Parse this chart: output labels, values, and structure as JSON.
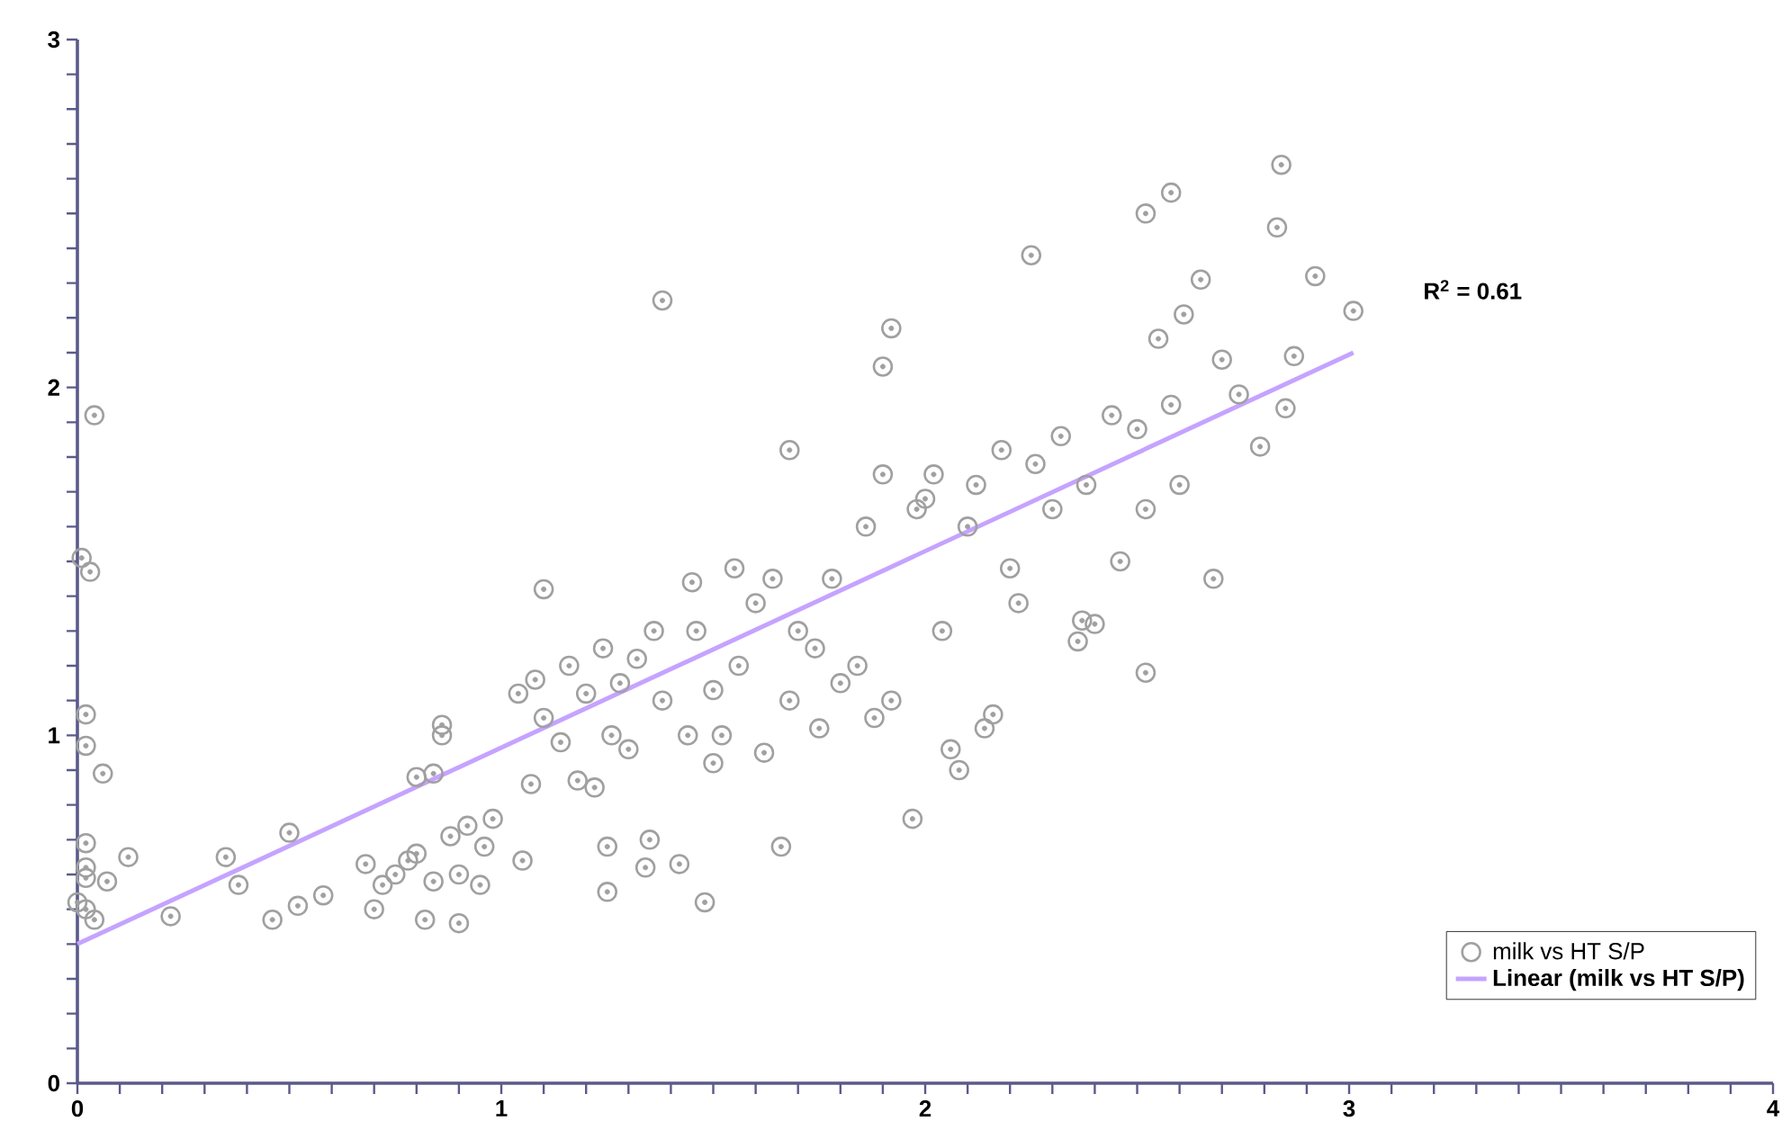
{
  "chart_data": {
    "type": "scatter",
    "xlim": [
      0,
      4
    ],
    "ylim": [
      0,
      3
    ],
    "xticks": [
      0,
      1,
      2,
      3,
      4
    ],
    "yticks": [
      0,
      1,
      2,
      3
    ],
    "grid": false,
    "legend": "bottom right",
    "annotations": [
      "R$^{2}$ = 0.61"
    ],
    "series": [
      {
        "name": "milk vs HT S/P",
        "marker": "circle",
        "color": "#a0a0a0",
        "x": [
          0.04,
          0.01,
          0.03,
          0.02,
          0.02,
          0.06,
          0.02,
          0.02,
          0.02,
          0.0,
          0.02,
          0.04,
          0.07,
          0.12,
          0.22,
          0.35,
          0.38,
          0.46,
          0.5,
          0.52,
          0.58,
          0.68,
          0.7,
          0.72,
          0.75,
          0.78,
          0.8,
          0.82,
          0.84,
          0.8,
          0.84,
          0.86,
          0.86,
          0.88,
          0.9,
          0.9,
          0.92,
          0.95,
          0.96,
          0.98,
          1.04,
          1.05,
          1.07,
          1.08,
          1.1,
          1.1,
          1.14,
          1.16,
          1.18,
          1.2,
          1.22,
          1.24,
          1.25,
          1.25,
          1.26,
          1.28,
          1.3,
          1.32,
          1.34,
          1.35,
          1.36,
          1.38,
          1.38,
          1.42,
          1.44,
          1.45,
          1.46,
          1.48,
          1.5,
          1.5,
          1.52,
          1.55,
          1.56,
          1.6,
          1.62,
          1.64,
          1.66,
          1.68,
          1.68,
          1.7,
          1.74,
          1.75,
          1.78,
          1.8,
          1.84,
          1.86,
          1.88,
          1.9,
          1.9,
          1.92,
          1.92,
          1.97,
          1.98,
          2.0,
          2.02,
          2.04,
          2.06,
          2.08,
          2.1,
          2.12,
          2.14,
          2.16,
          2.18,
          2.2,
          2.22,
          2.25,
          2.26,
          2.3,
          2.32,
          2.36,
          2.37,
          2.38,
          2.4,
          2.44,
          2.46,
          2.5,
          2.52,
          2.52,
          2.52,
          2.55,
          2.58,
          2.58,
          2.6,
          2.61,
          2.65,
          2.68,
          2.7,
          2.74,
          2.79,
          2.83,
          2.84,
          2.85,
          2.87,
          2.92,
          3.01
        ],
        "values": [
          1.92,
          1.51,
          1.47,
          1.06,
          0.97,
          0.89,
          0.69,
          0.62,
          0.59,
          0.52,
          0.5,
          0.47,
          0.58,
          0.65,
          0.48,
          0.65,
          0.57,
          0.47,
          0.72,
          0.51,
          0.54,
          0.63,
          0.5,
          0.57,
          0.6,
          0.64,
          0.66,
          0.47,
          0.58,
          0.88,
          0.89,
          1.0,
          1.03,
          0.71,
          0.6,
          0.46,
          0.74,
          0.57,
          0.68,
          0.76,
          1.12,
          0.64,
          0.86,
          1.16,
          1.42,
          1.05,
          0.98,
          1.2,
          0.87,
          1.12,
          0.85,
          1.25,
          0.68,
          0.55,
          1.0,
          1.15,
          0.96,
          1.22,
          0.62,
          0.7,
          1.3,
          1.1,
          2.25,
          0.63,
          1.0,
          1.44,
          1.3,
          0.52,
          0.92,
          1.13,
          1.0,
          1.48,
          1.2,
          1.38,
          0.95,
          1.45,
          0.68,
          1.1,
          1.82,
          1.3,
          1.25,
          1.02,
          1.45,
          1.15,
          1.2,
          1.6,
          1.05,
          1.75,
          2.06,
          1.1,
          2.17,
          0.76,
          1.65,
          1.68,
          1.75,
          1.3,
          0.96,
          0.9,
          1.6,
          1.72,
          1.02,
          1.06,
          1.82,
          1.48,
          1.38,
          2.38,
          1.78,
          1.65,
          1.86,
          1.27,
          1.33,
          1.72,
          1.32,
          1.92,
          1.5,
          1.88,
          2.5,
          1.18,
          1.65,
          2.14,
          1.95,
          2.56,
          1.72,
          2.21,
          2.31,
          1.45,
          2.08,
          1.98,
          1.83,
          2.46,
          2.64,
          1.94,
          2.09,
          2.32,
          2.22
        ]
      },
      {
        "name": "Linear (milk vs HT S/P)",
        "type": "line",
        "color": "#c5a3ff",
        "x": [
          0,
          3.01
        ],
        "values": [
          0.4,
          2.1
        ]
      }
    ]
  }
}
